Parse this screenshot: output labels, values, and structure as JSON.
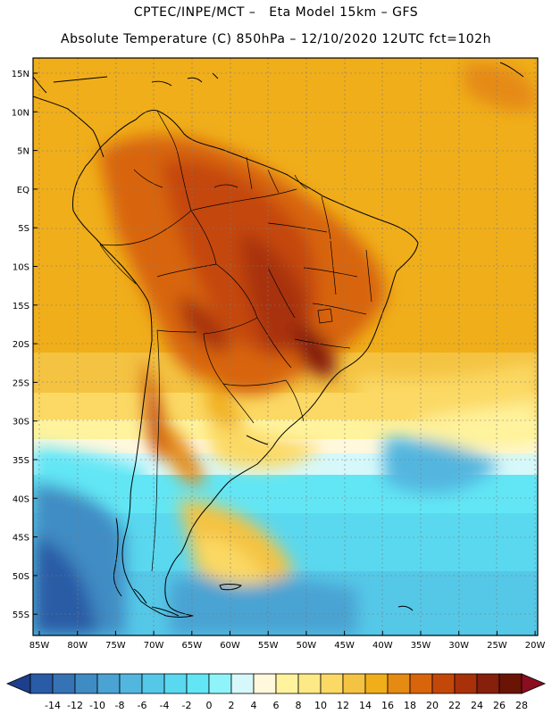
{
  "header": {
    "line1": "CPTEC/INPE/MCT –   Eta Model 15km – GFS",
    "line2": "Absolute Temperature (C) 850hPa – 12/10/2020 12UTC fct=102h"
  },
  "map": {
    "lat_labels": [
      "15N",
      "10N",
      "5N",
      "EQ",
      "5S",
      "10S",
      "15S",
      "20S",
      "25S",
      "30S",
      "35S",
      "40S",
      "45S",
      "50S",
      "55S"
    ],
    "lon_labels": [
      "85W",
      "80W",
      "75W",
      "70W",
      "65W",
      "60W",
      "55W",
      "50W",
      "45W",
      "40W",
      "35W",
      "30W",
      "25W",
      "20W"
    ]
  },
  "colorbar": {
    "labels": [
      "-14",
      "-12",
      "-10",
      "-8",
      "-6",
      "-4",
      "-2",
      "0",
      "2",
      "4",
      "6",
      "8",
      "10",
      "12",
      "14",
      "16",
      "18",
      "20",
      "22",
      "24",
      "26",
      "28"
    ],
    "colors": [
      "#1d3f8c",
      "#2a5ba6",
      "#3673b5",
      "#3f8cc4",
      "#4aa3d3",
      "#52b6df",
      "#55c8e8",
      "#5ad8ef",
      "#62e6f5",
      "#8ff4fa",
      "#d6f8fa",
      "#fff8dc",
      "#fff39d",
      "#fde985",
      "#fbd964",
      "#f4c342",
      "#f0ae1a",
      "#e58a13",
      "#d8650c",
      "#c4470a",
      "#a8310a",
      "#861f0c",
      "#6a1406",
      "#8a0e20"
    ]
  }
}
